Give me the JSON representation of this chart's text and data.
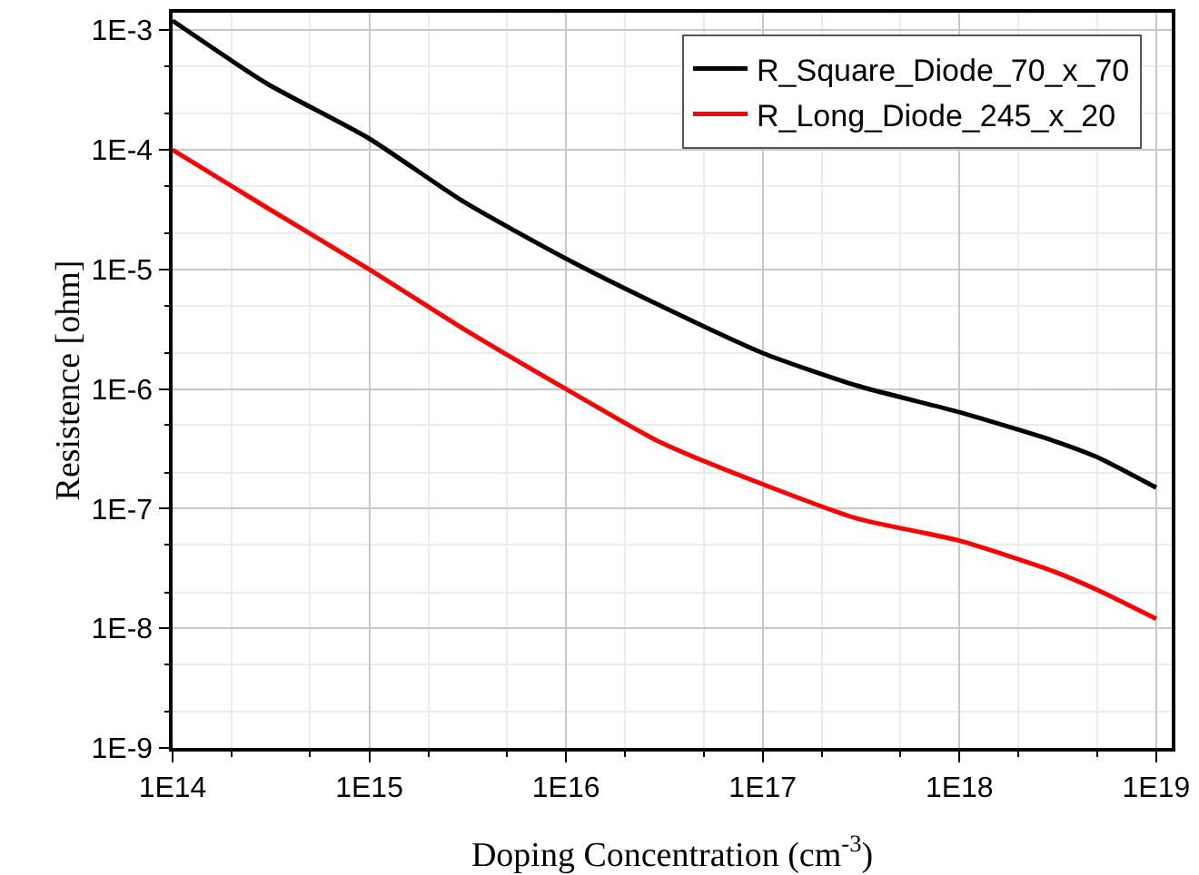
{
  "chart_data": {
    "type": "line",
    "xlabel": "Doping Concentration (cm$^{-3}$)",
    "ylabel": "Resistence [ohm]",
    "log": "xy",
    "grid": true,
    "legend": "top right",
    "marker": "none",
    "line_style": "solid",
    "xlim": [
      100000000000000.0,
      1.2e+19
    ],
    "ylim": [
      1e-09,
      0.0014
    ],
    "xticks": [
      {
        "value": 100000000000000.0,
        "label": "1E14"
      },
      {
        "value": 1000000000000000.0,
        "label": "1E15"
      },
      {
        "value": 1e+16,
        "label": "1E16"
      },
      {
        "value": 1e+17,
        "label": "1E17"
      },
      {
        "value": 1e+18,
        "label": "1E18"
      },
      {
        "value": 1e+19,
        "label": "1E19"
      }
    ],
    "yticks": [
      {
        "value": 1e-09,
        "label": "1E-9"
      },
      {
        "value": 1e-08,
        "label": "1E-8"
      },
      {
        "value": 1e-07,
        "label": "1E-7"
      },
      {
        "value": 1e-06,
        "label": "1E-6"
      },
      {
        "value": 1e-05,
        "label": "1E-5"
      },
      {
        "value": 0.0001,
        "label": "1E-4"
      },
      {
        "value": 0.001,
        "label": "1E-3"
      }
    ],
    "x": [
      100000000000000.0,
      300000000000000.0,
      1000000000000000.0,
      3000000000000000.0,
      1e+16,
      3e+16,
      1e+17,
      3e+17,
      1e+18,
      3e+18,
      5e+18,
      1e+19
    ],
    "series": [
      {
        "name": "R_Square_Diode_70_x_70",
        "color": "#000000",
        "values": [
          0.0012,
          0.00036,
          0.000124,
          3.7e-05,
          1.23e-05,
          5e-06,
          2e-06,
          1.07e-06,
          6.4e-07,
          3.7e-07,
          2.7e-07,
          1.5e-07
        ]
      },
      {
        "name": "R_Long_Diode_245_x_20",
        "color": "#ff0000",
        "values": [
          0.0001,
          3.3e-05,
          1e-05,
          3.2e-06,
          1e-06,
          3.6e-07,
          1.6e-07,
          8.3e-08,
          5.4e-08,
          3e-08,
          2.1e-08,
          1.2e-08
        ]
      }
    ]
  }
}
